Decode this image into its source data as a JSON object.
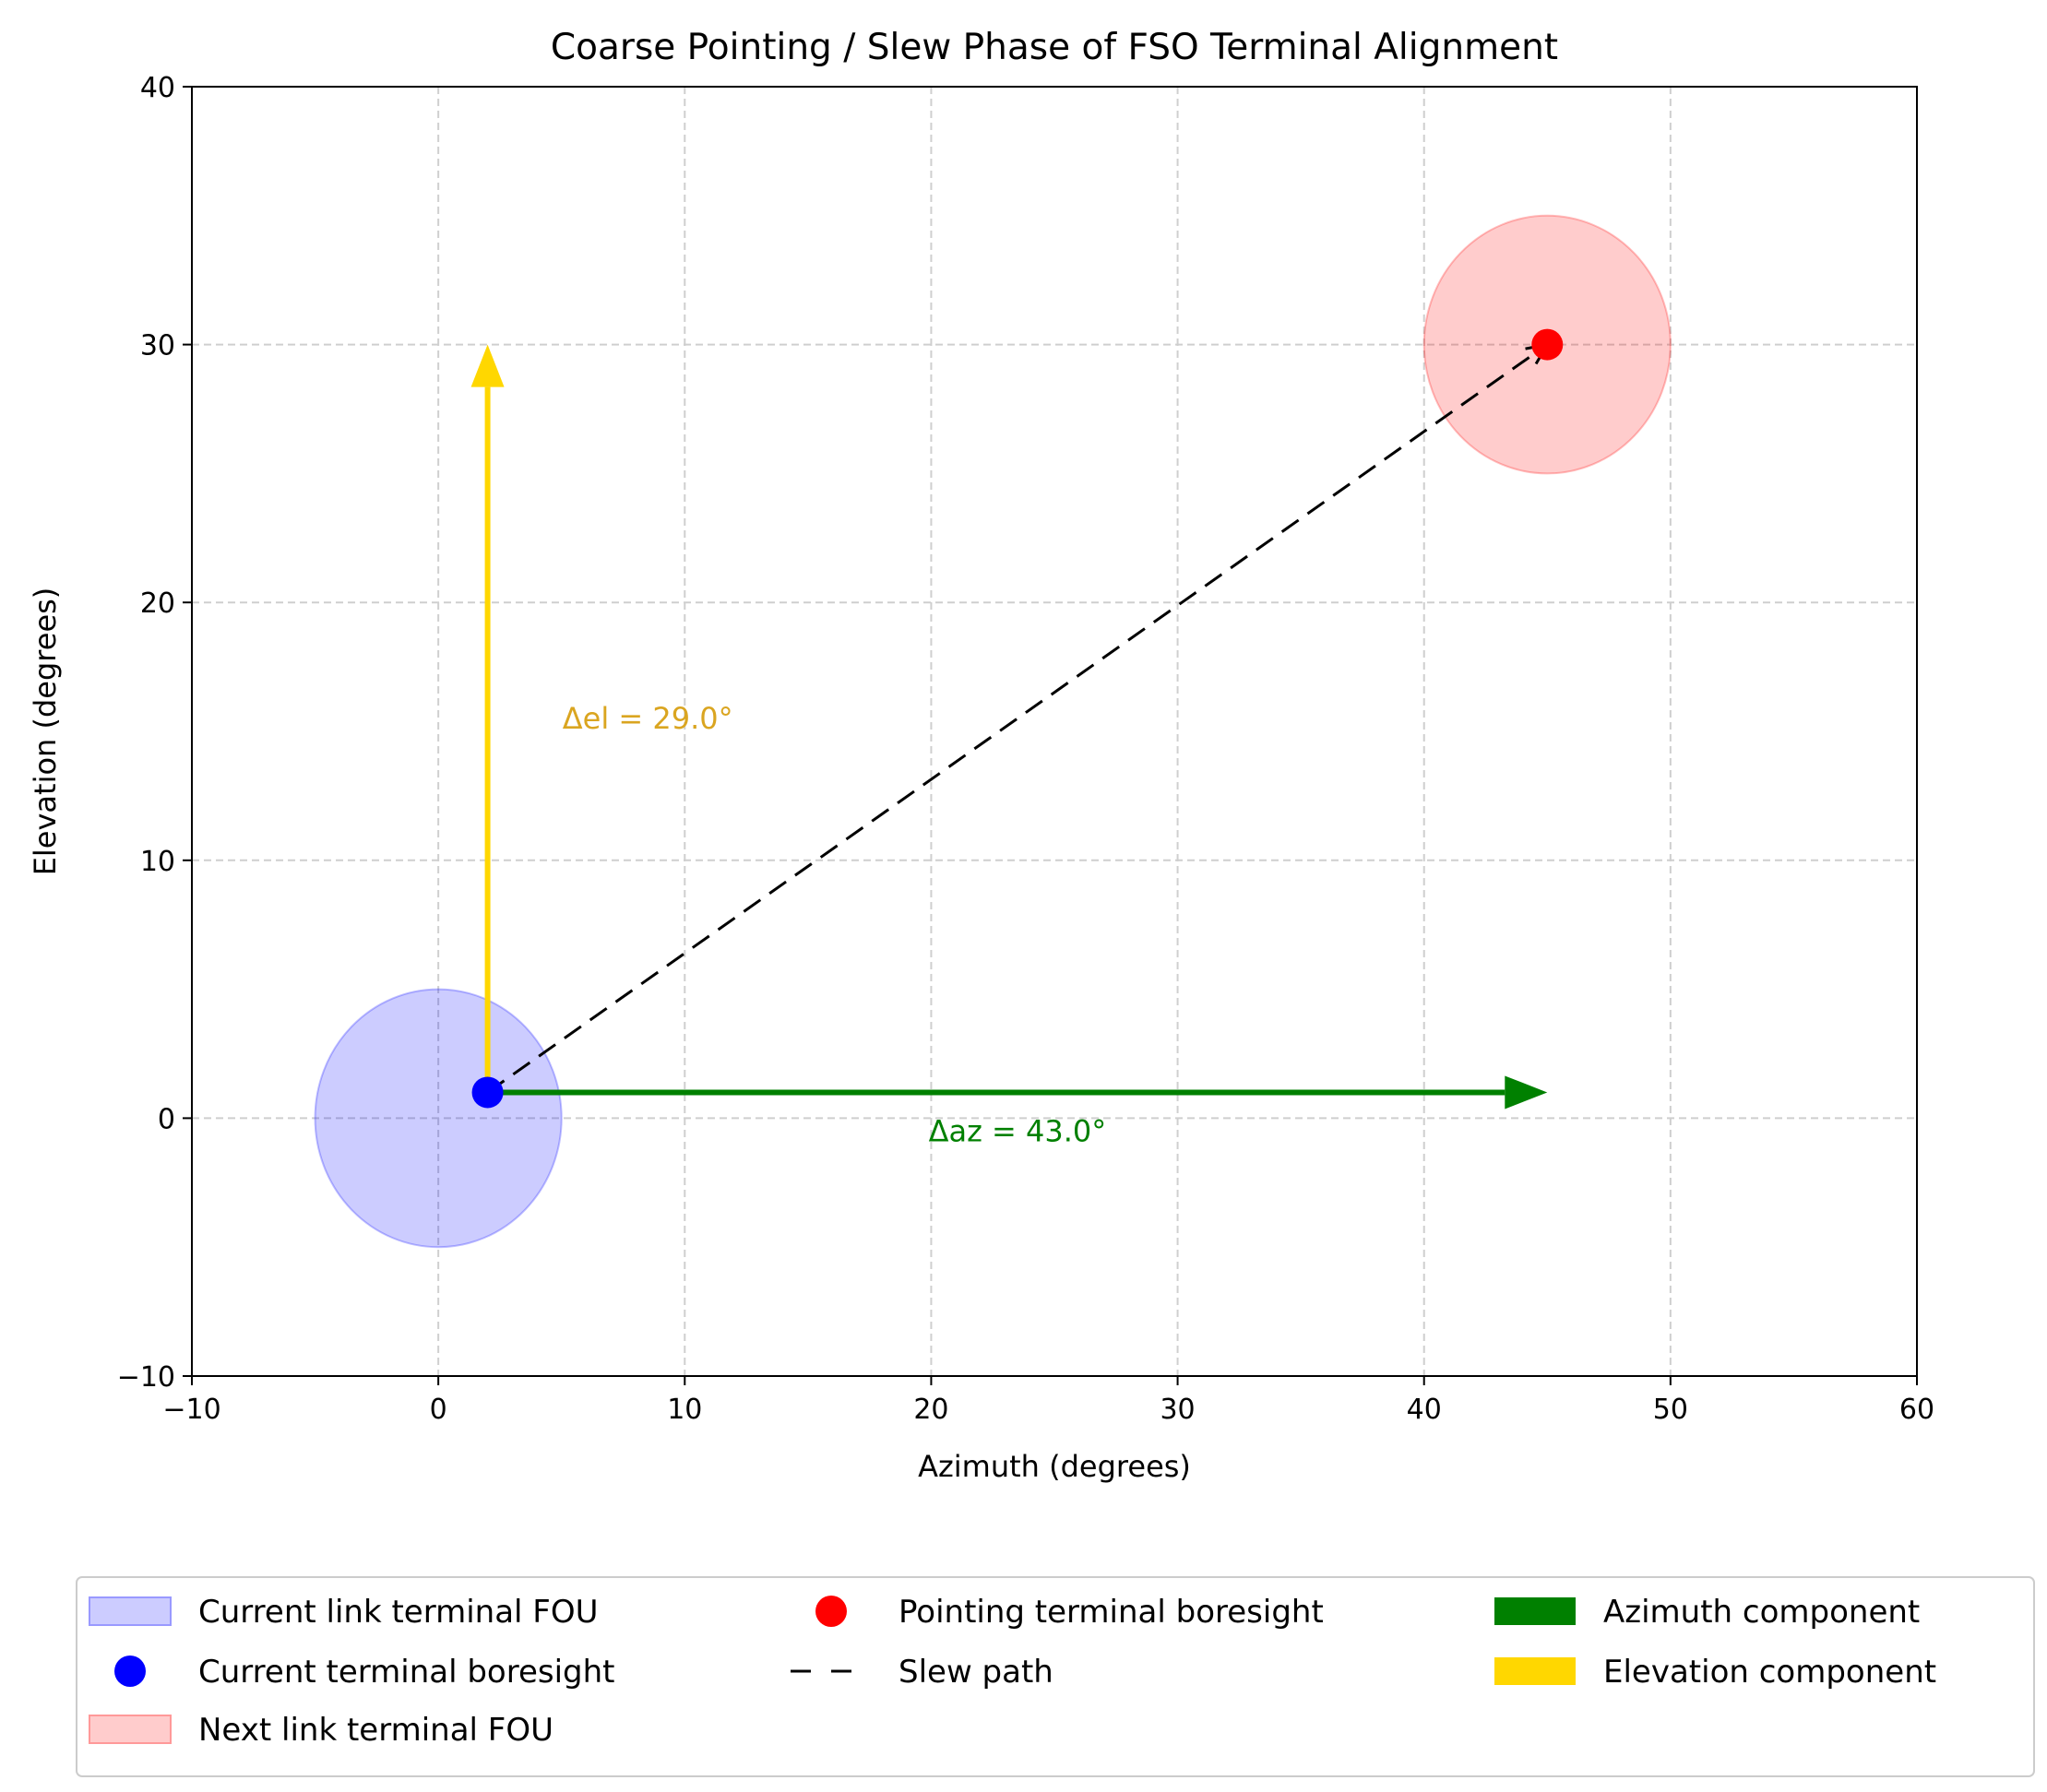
{
  "chart_data": {
    "type": "scatter",
    "title": "Coarse Pointing / Slew Phase of FSO Terminal Alignment",
    "xlabel": "Azimuth (degrees)",
    "ylabel": "Elevation (degrees)",
    "xlim": [
      -10,
      60
    ],
    "ylim": [
      -10,
      40
    ],
    "xticks": [
      -10,
      0,
      10,
      20,
      30,
      40,
      50,
      60
    ],
    "yticks": [
      -10,
      0,
      10,
      20,
      30,
      40
    ],
    "xtick_labels": [
      "−10",
      "0",
      "10",
      "20",
      "30",
      "40",
      "50",
      "60"
    ],
    "ytick_labels": [
      "−10",
      "0",
      "10",
      "20",
      "30",
      "40"
    ],
    "grid": true,
    "legend_placement": "bottom-center",
    "fou_regions": [
      {
        "name": "Current link terminal FOU",
        "center": [
          0,
          0
        ],
        "radius": 5,
        "color": "#0000ff"
      },
      {
        "name": "Next link terminal FOU",
        "center": [
          45,
          30
        ],
        "radius": 5,
        "color": "#ff0000"
      }
    ],
    "points": [
      {
        "name": "Current terminal boresight",
        "x": 2,
        "y": 1,
        "color": "#0000ff"
      },
      {
        "name": "Pointing terminal boresight",
        "x": 45,
        "y": 30,
        "color": "#ff0000"
      }
    ],
    "slew_path": {
      "name": "Slew path",
      "from": [
        2,
        1
      ],
      "to": [
        45,
        30
      ],
      "color": "#000000"
    },
    "components": [
      {
        "name": "Azimuth component",
        "from": [
          2,
          1
        ],
        "to": [
          45,
          1
        ],
        "color": "#008000"
      },
      {
        "name": "Elevation component",
        "from": [
          2,
          1
        ],
        "to": [
          2,
          30
        ],
        "color": "#ffd700"
      }
    ],
    "annotations": [
      {
        "text": "Δaz = 43.0°",
        "x": 23.5,
        "y": -0.5,
        "color": "#008000"
      },
      {
        "text": "Δel = 29.0°",
        "x": 8.5,
        "y": 15.5,
        "color": "#daa520"
      }
    ],
    "legend": [
      {
        "label": "Current link terminal FOU",
        "kind": "patch",
        "color": "#ccccff",
        "edge": "#9999ff"
      },
      {
        "label": "Current terminal boresight",
        "kind": "dot",
        "color": "#0000ff"
      },
      {
        "label": "Next link terminal FOU",
        "kind": "patch",
        "color": "#ffcccc",
        "edge": "#ff9999"
      },
      {
        "label": "Pointing terminal boresight",
        "kind": "dot",
        "color": "#ff0000"
      },
      {
        "label": "Slew path",
        "kind": "dash",
        "color": "#000000"
      },
      {
        "label": "Azimuth component",
        "kind": "solid",
        "color": "#008000"
      },
      {
        "label": "Elevation component",
        "kind": "solid",
        "color": "#ffd700"
      }
    ]
  }
}
